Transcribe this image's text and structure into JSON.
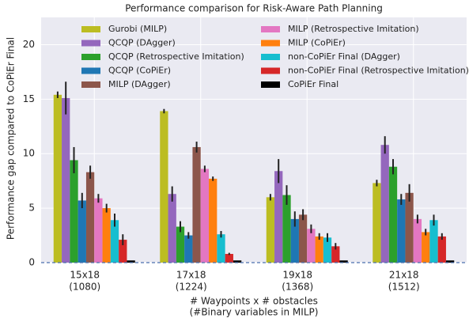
{
  "chart_data": {
    "type": "bar",
    "title": "Performance comparison for Risk-Aware Path Planning",
    "y_label": "Performance gap compared to CoPiEr Final",
    "x_label": [
      "# Waypoints x # obstacles",
      "(#Binary variables in MILP)"
    ],
    "categories": [
      [
        "15x18",
        "(1080)"
      ],
      [
        "17x18",
        "(1224)"
      ],
      [
        "19x18",
        "(1368)"
      ],
      [
        "21x18",
        "(1512)"
      ]
    ],
    "ylim": [
      0,
      22.5
    ],
    "yticks": [
      0,
      5,
      10,
      15,
      20
    ],
    "grid": true,
    "hline": 0,
    "series": [
      {
        "name": "Gurobi (MILP)",
        "color": "#bcbd22",
        "values": [
          15.4,
          13.9,
          6.0,
          7.3
        ],
        "errors": [
          0.3,
          0.2,
          0.3,
          0.3
        ]
      },
      {
        "name": "QCQP (DAgger)",
        "color": "#9467bd",
        "values": [
          15.1,
          6.3,
          8.4,
          10.8
        ],
        "errors": [
          1.5,
          0.7,
          1.1,
          0.8
        ]
      },
      {
        "name": "QCQP (Retrospective Imitation)",
        "color": "#2ca02c",
        "values": [
          9.4,
          3.3,
          6.2,
          8.8
        ],
        "errors": [
          1.2,
          0.5,
          0.9,
          0.7
        ]
      },
      {
        "name": "QCQP (CoPiEr)",
        "color": "#1f77b4",
        "values": [
          5.7,
          2.5,
          4.0,
          5.8
        ],
        "errors": [
          0.7,
          0.3,
          0.7,
          0.5
        ]
      },
      {
        "name": "MILP (DAgger)",
        "color": "#8c564b",
        "values": [
          8.3,
          10.6,
          4.4,
          6.4
        ],
        "errors": [
          0.6,
          0.5,
          0.5,
          0.8
        ]
      },
      {
        "name": "MILP (Retrospective Imitation)",
        "color": "#e377c2",
        "values": [
          5.9,
          8.6,
          3.1,
          4.0
        ],
        "errors": [
          0.4,
          0.3,
          0.4,
          0.4
        ]
      },
      {
        "name": "MILP (CoPiEr)",
        "color": "#ff7f0e",
        "values": [
          5.0,
          7.7,
          2.4,
          2.8
        ],
        "errors": [
          0.4,
          0.2,
          0.3,
          0.3
        ]
      },
      {
        "name": "non-CoPiEr Final (DAgger)",
        "color": "#17becf",
        "values": [
          3.9,
          2.6,
          2.3,
          3.9
        ],
        "errors": [
          0.6,
          0.3,
          0.4,
          0.5
        ]
      },
      {
        "name": "non-CoPiEr Final (Retrospective Imitation)",
        "color": "#d62728",
        "values": [
          2.1,
          0.8,
          1.5,
          2.4
        ],
        "errors": [
          0.5,
          0.1,
          0.3,
          0.3
        ]
      },
      {
        "name": "CoPiEr Final",
        "color": "#000000",
        "values": [
          0.2,
          0.2,
          0.2,
          0.2
        ],
        "errors": [
          0,
          0,
          0,
          0
        ]
      }
    ]
  }
}
